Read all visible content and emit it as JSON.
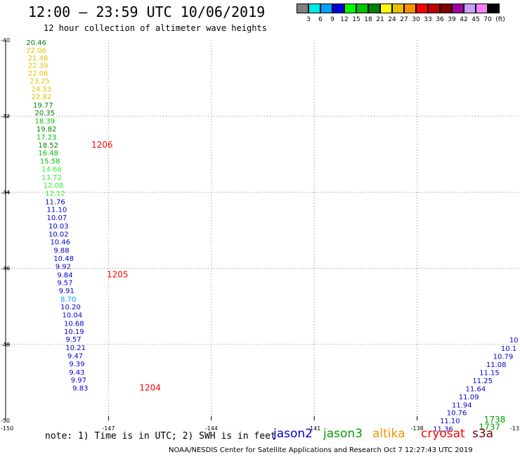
{
  "header": {
    "title": "12:00 — 23:59 UTC 10/06/2019",
    "subtitle": "12 hour collection of altimeter wave heights"
  },
  "legend": {
    "unit": "(ft)",
    "bins": [
      {
        "label": "3",
        "color": "#808080"
      },
      {
        "label": "6",
        "color": "#00e8e8"
      },
      {
        "label": "9",
        "color": "#00a0ff"
      },
      {
        "label": "12",
        "color": "#0000e0"
      },
      {
        "label": "15",
        "color": "#00ff00"
      },
      {
        "label": "18",
        "color": "#00c000"
      },
      {
        "label": "21",
        "color": "#008000"
      },
      {
        "label": "24",
        "color": "#ffff00"
      },
      {
        "label": "27",
        "color": "#e8c000"
      },
      {
        "label": "30",
        "color": "#ff9000"
      },
      {
        "label": "33",
        "color": "#ff0000"
      },
      {
        "label": "36",
        "color": "#c00000"
      },
      {
        "label": "39",
        "color": "#800000"
      },
      {
        "label": "42",
        "color": "#a000a0"
      },
      {
        "label": "45",
        "color": "#c8a0ff"
      },
      {
        "label": "70",
        "color": "#ff80ff"
      },
      {
        "label": "",
        "color": "#000000"
      }
    ]
  },
  "map": {
    "lon_range": [
      -150,
      -135
    ],
    "lat_range": [
      -50,
      -40
    ],
    "lon_ticks": [
      {
        "value": -147,
        "label": "-147"
      },
      {
        "value": -144,
        "label": "-144"
      },
      {
        "value": -141,
        "label": "-141"
      },
      {
        "value": -138,
        "label": "-138"
      }
    ],
    "lat_ticks": [
      {
        "value": -42,
        "label": "-42"
      },
      {
        "value": -44,
        "label": "-44"
      },
      {
        "value": -46,
        "label": "-46"
      },
      {
        "value": -48,
        "label": "-48"
      }
    ],
    "corner_labels": {
      "top_left": "-40",
      "bottom_left_lat": "-50",
      "bottom_left_lon": "-150",
      "bottom_right_lon": "-13"
    },
    "track_west": [
      {
        "v": "20.46",
        "c": "#008000",
        "lon": -149.4,
        "lat": -40.06
      },
      {
        "v": "22.06",
        "c": "#e8c000",
        "lon": -149.4,
        "lat": -40.26
      },
      {
        "v": "21.48",
        "c": "#e8c000",
        "lon": -149.35,
        "lat": -40.46
      },
      {
        "v": "22.39",
        "c": "#e8c000",
        "lon": -149.35,
        "lat": -40.66
      },
      {
        "v": "22.06",
        "c": "#e8c000",
        "lon": -149.35,
        "lat": -40.86
      },
      {
        "v": "23.25",
        "c": "#e8c000",
        "lon": -149.3,
        "lat": -41.06
      },
      {
        "v": "24.53",
        "c": "#e8c000",
        "lon": -149.25,
        "lat": -41.28
      },
      {
        "v": "22.82",
        "c": "#e8c000",
        "lon": -149.25,
        "lat": -41.48
      },
      {
        "v": "19.77",
        "c": "#008000",
        "lon": -149.2,
        "lat": -41.7
      },
      {
        "v": "20.35",
        "c": "#008000",
        "lon": -149.15,
        "lat": -41.9
      },
      {
        "v": "18.39",
        "c": "#00c000",
        "lon": -149.15,
        "lat": -42.12
      },
      {
        "v": "19.82",
        "c": "#008000",
        "lon": -149.1,
        "lat": -42.33
      },
      {
        "v": "17.23",
        "c": "#00c000",
        "lon": -149.1,
        "lat": -42.54
      },
      {
        "v": "18.52",
        "c": "#008000",
        "lon": -149.05,
        "lat": -42.75
      },
      {
        "v": "16.48",
        "c": "#00c000",
        "lon": -149.05,
        "lat": -42.96
      },
      {
        "v": "15.58",
        "c": "#00c000",
        "lon": -149.0,
        "lat": -43.17
      },
      {
        "v": "14.66",
        "c": "#33ee33",
        "lon": -148.95,
        "lat": -43.38
      },
      {
        "v": "13.72",
        "c": "#33ee33",
        "lon": -148.95,
        "lat": -43.6
      },
      {
        "v": "12.08",
        "c": "#33ee33",
        "lon": -148.9,
        "lat": -43.81
      },
      {
        "v": "12.12",
        "c": "#33ee33",
        "lon": -148.85,
        "lat": -44.02
      },
      {
        "v": "11.76",
        "c": "#0000d0",
        "lon": -148.85,
        "lat": -44.24
      },
      {
        "v": "11.10",
        "c": "#0000d0",
        "lon": -148.8,
        "lat": -44.45
      },
      {
        "v": "10.07",
        "c": "#0000d0",
        "lon": -148.8,
        "lat": -44.66
      },
      {
        "v": "10.03",
        "c": "#0000d0",
        "lon": -148.75,
        "lat": -44.88
      },
      {
        "v": "10.02",
        "c": "#0000d0",
        "lon": -148.75,
        "lat": -45.09
      },
      {
        "v": "10.46",
        "c": "#0000d0",
        "lon": -148.7,
        "lat": -45.3
      },
      {
        "v": "9.88",
        "c": "#0000d0",
        "lon": -148.6,
        "lat": -45.52
      },
      {
        "v": "10.48",
        "c": "#0000d0",
        "lon": -148.6,
        "lat": -45.73
      },
      {
        "v": "9.92",
        "c": "#0000d0",
        "lon": -148.55,
        "lat": -45.94
      },
      {
        "v": "9.84",
        "c": "#0000d0",
        "lon": -148.5,
        "lat": -46.16
      },
      {
        "v": "9.57",
        "c": "#0000d0",
        "lon": -148.5,
        "lat": -46.37
      },
      {
        "v": "9.91",
        "c": "#0000d0",
        "lon": -148.45,
        "lat": -46.58
      },
      {
        "v": "8.70",
        "c": "#00a0ff",
        "lon": -148.4,
        "lat": -46.8
      },
      {
        "v": "10.20",
        "c": "#0000d0",
        "lon": -148.4,
        "lat": -47.01
      },
      {
        "v": "10.04",
        "c": "#0000d0",
        "lon": -148.35,
        "lat": -47.22
      },
      {
        "v": "10.68",
        "c": "#0000d0",
        "lon": -148.3,
        "lat": -47.44
      },
      {
        "v": "10.19",
        "c": "#0000d0",
        "lon": -148.3,
        "lat": -47.65
      },
      {
        "v": "9.57",
        "c": "#0000d0",
        "lon": -148.25,
        "lat": -47.86
      },
      {
        "v": "10.21",
        "c": "#0000d0",
        "lon": -148.25,
        "lat": -48.08
      },
      {
        "v": "9.47",
        "c": "#0000d0",
        "lon": -148.2,
        "lat": -48.29
      },
      {
        "v": "9.39",
        "c": "#0000d0",
        "lon": -148.15,
        "lat": -48.5
      },
      {
        "v": "9.43",
        "c": "#0000d0",
        "lon": -148.15,
        "lat": -48.72
      },
      {
        "v": "9.97",
        "c": "#0000d0",
        "lon": -148.1,
        "lat": -48.93
      },
      {
        "v": "9.83",
        "c": "#0000d0",
        "lon": -148.05,
        "lat": -49.14
      }
    ],
    "track_east": [
      {
        "v": "10",
        "c": "#0000d0",
        "lon": -135.05,
        "lat": -47.87
      },
      {
        "v": "10.1",
        "c": "#0000d0",
        "lon": -135.1,
        "lat": -48.1
      },
      {
        "v": "10.79",
        "c": "#0000d0",
        "lon": -135.2,
        "lat": -48.31
      },
      {
        "v": "11.08",
        "c": "#0000d0",
        "lon": -135.4,
        "lat": -48.52
      },
      {
        "v": "11.15",
        "c": "#0000d0",
        "lon": -135.6,
        "lat": -48.73
      },
      {
        "v": "11.25",
        "c": "#0000d0",
        "lon": -135.8,
        "lat": -48.95
      },
      {
        "v": "11.64",
        "c": "#0000d0",
        "lon": -136.0,
        "lat": -49.16
      },
      {
        "v": "11.09",
        "c": "#0000d0",
        "lon": -136.2,
        "lat": -49.37
      },
      {
        "v": "11.94",
        "c": "#0000d0",
        "lon": -136.4,
        "lat": -49.58
      },
      {
        "v": "10.76",
        "c": "#0000d0",
        "lon": -136.55,
        "lat": -49.79
      },
      {
        "v": "11.10",
        "c": "#0000d0",
        "lon": -136.75,
        "lat": -50.0
      },
      {
        "v": "11.36",
        "c": "#0000d0",
        "lon": -136.95,
        "lat": -50.21
      }
    ],
    "time_labels": [
      {
        "t": "1206",
        "c": "#ff0000",
        "lon": -147.5,
        "lat": -42.75
      },
      {
        "t": "1205",
        "c": "#ff0000",
        "lon": -147.05,
        "lat": -46.16
      },
      {
        "t": "1204",
        "c": "#ff0000",
        "lon": -146.1,
        "lat": -49.14
      },
      {
        "t": "1738",
        "c": "#00a000",
        "lon": -136.05,
        "lat": -49.98
      },
      {
        "t": "1737",
        "c": "#00a000",
        "lon": -136.2,
        "lat": -50.18
      }
    ]
  },
  "note": "note: 1) Time is in UTC; 2) SWH is in feet",
  "satellites": [
    {
      "name": "jason2",
      "color": "#0000d0"
    },
    {
      "name": "jason3",
      "color": "#00a000"
    },
    {
      "name": "altika",
      "color": "#ff9000"
    },
    {
      "name": "cryosat",
      "color": "#ff0000"
    },
    {
      "name": "s3a",
      "color": "#800000"
    }
  ],
  "credit": "NOAA/NESDIS Center for Satellite Applications and Research   Oct  7 12:27:43 UTC 2019"
}
